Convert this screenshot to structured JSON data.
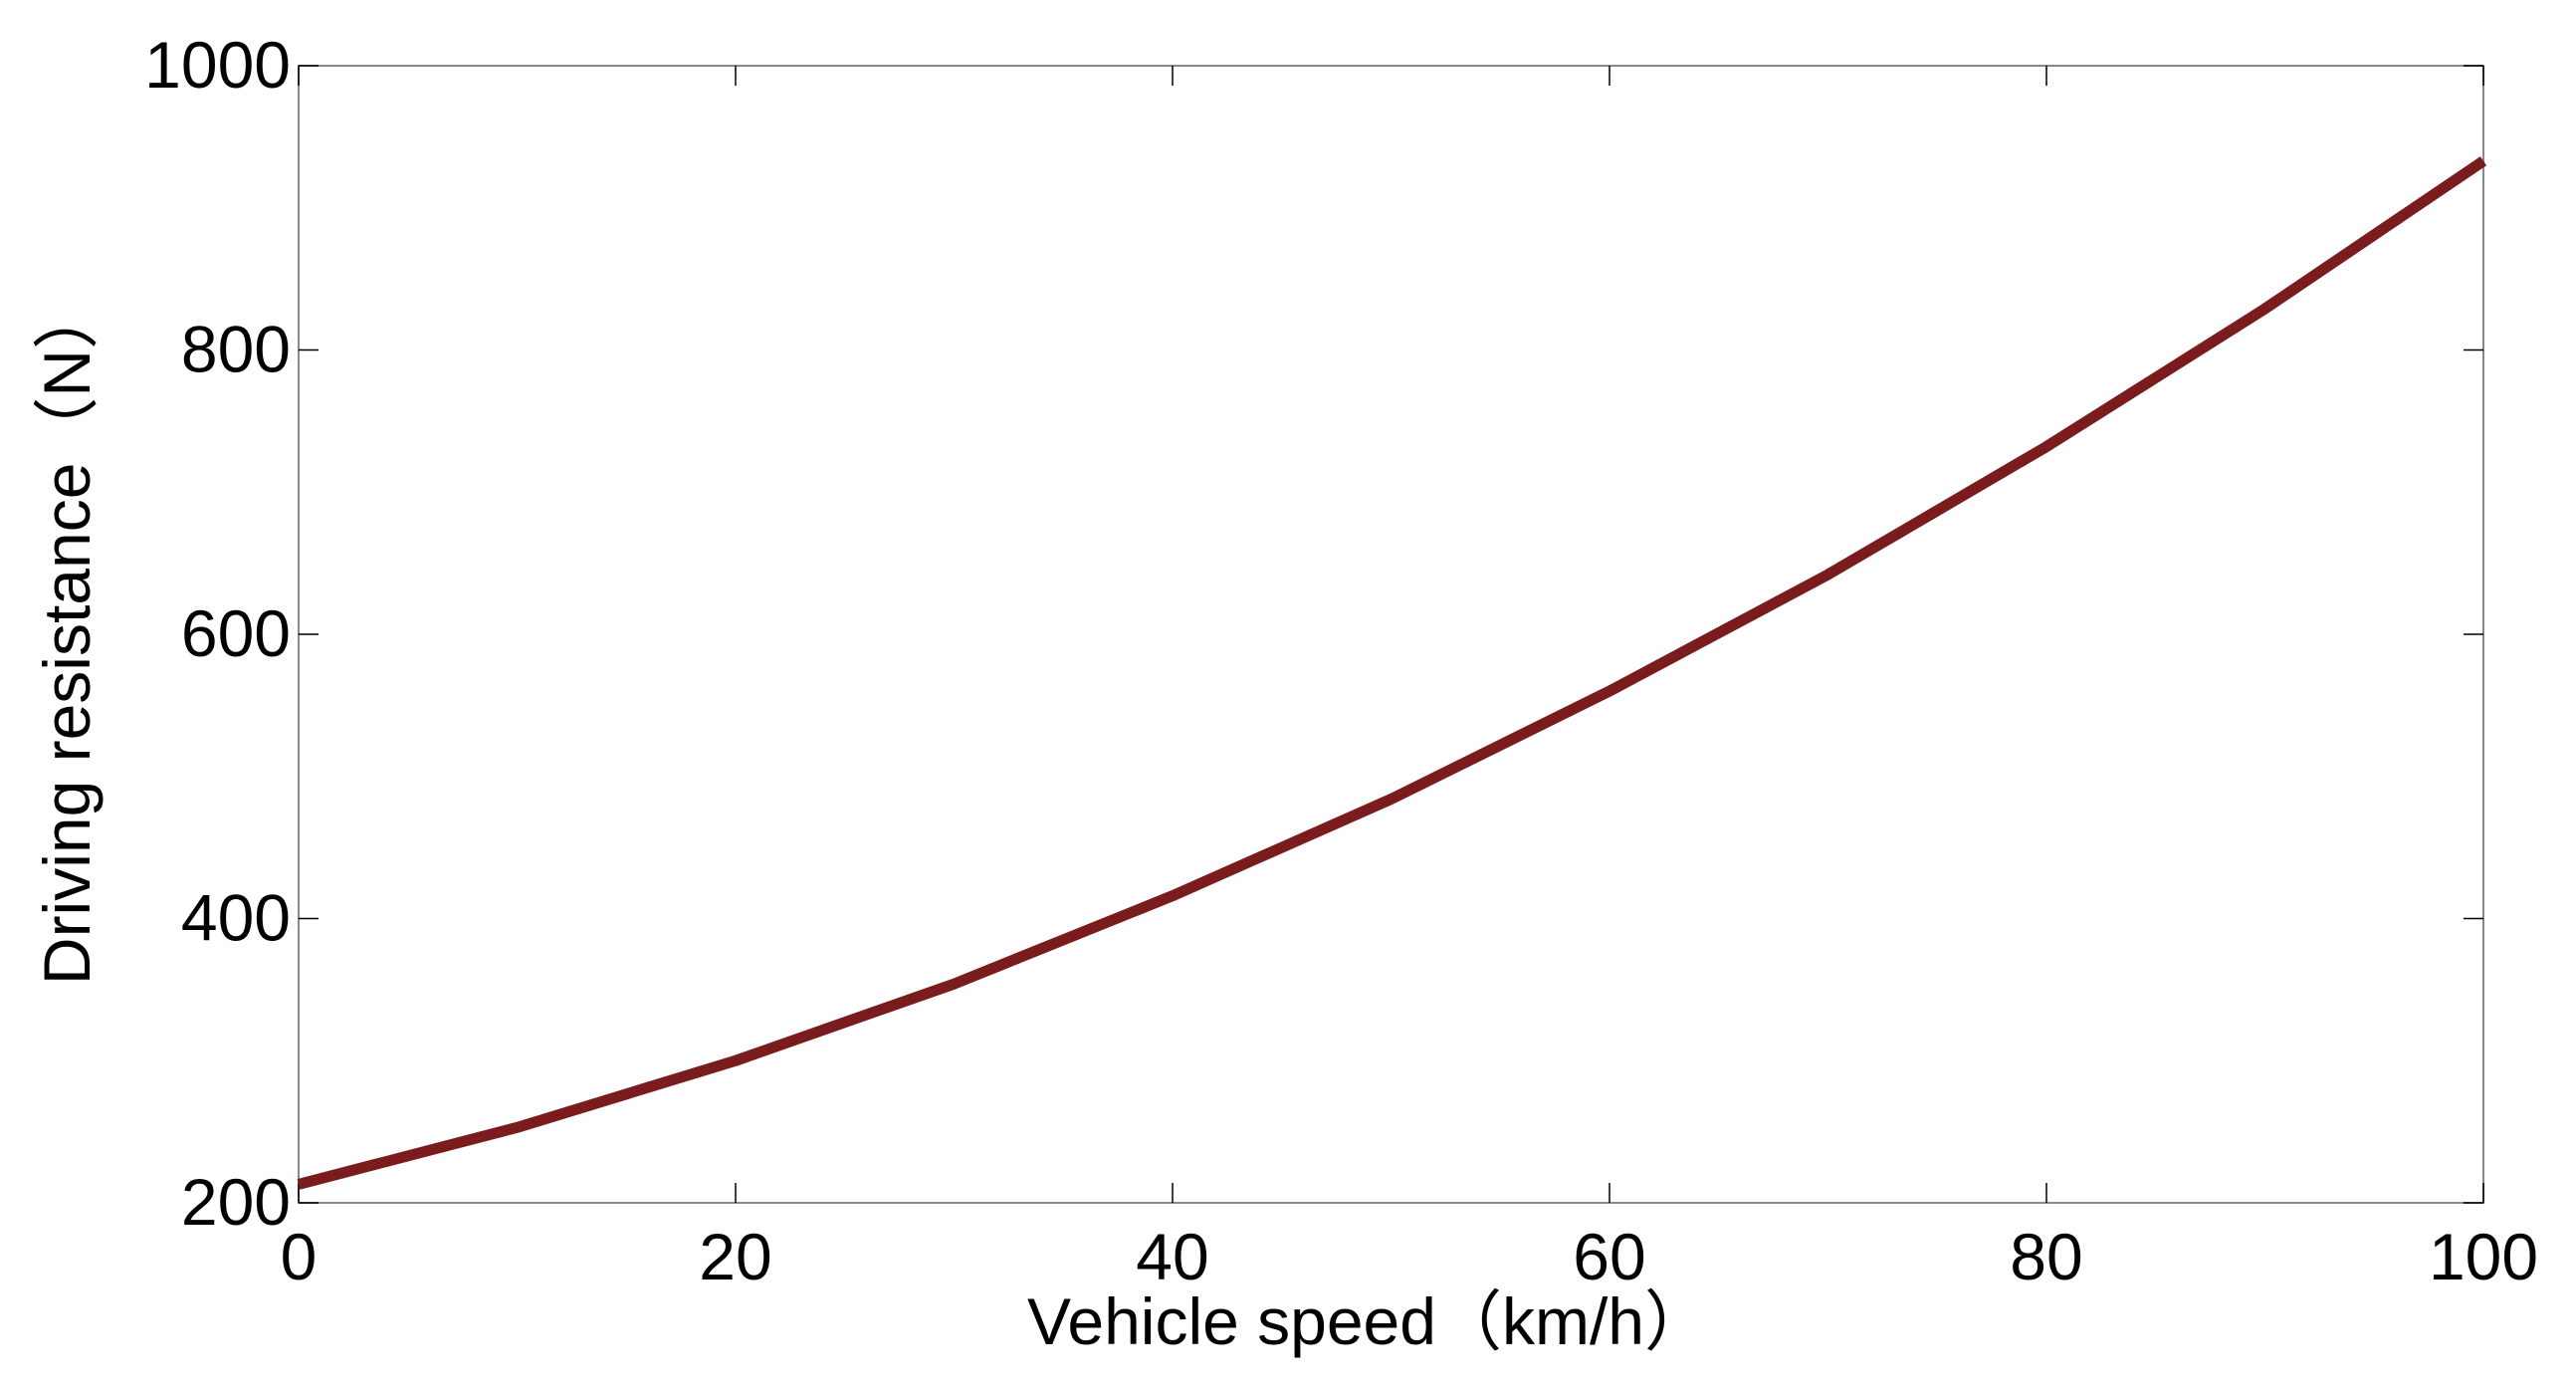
{
  "chart_data": {
    "type": "line",
    "xlabel": "Vehicle speed（km/h）",
    "ylabel": "Driving resistance（N）",
    "x": [
      0,
      10,
      20,
      30,
      40,
      50,
      60,
      70,
      80,
      90,
      100
    ],
    "series": [
      {
        "color": "#7a1c1e",
        "values": [
          213,
          253,
          300,
          354,
          416,
          484,
          560,
          642,
          732,
          829,
          933
        ]
      }
    ],
    "xlim": [
      0,
      100
    ],
    "xticks": [
      0,
      20,
      40,
      60,
      80,
      100
    ],
    "ylim": [
      200,
      1000
    ],
    "yticks": [
      200,
      400,
      600,
      800,
      1000
    ]
  }
}
